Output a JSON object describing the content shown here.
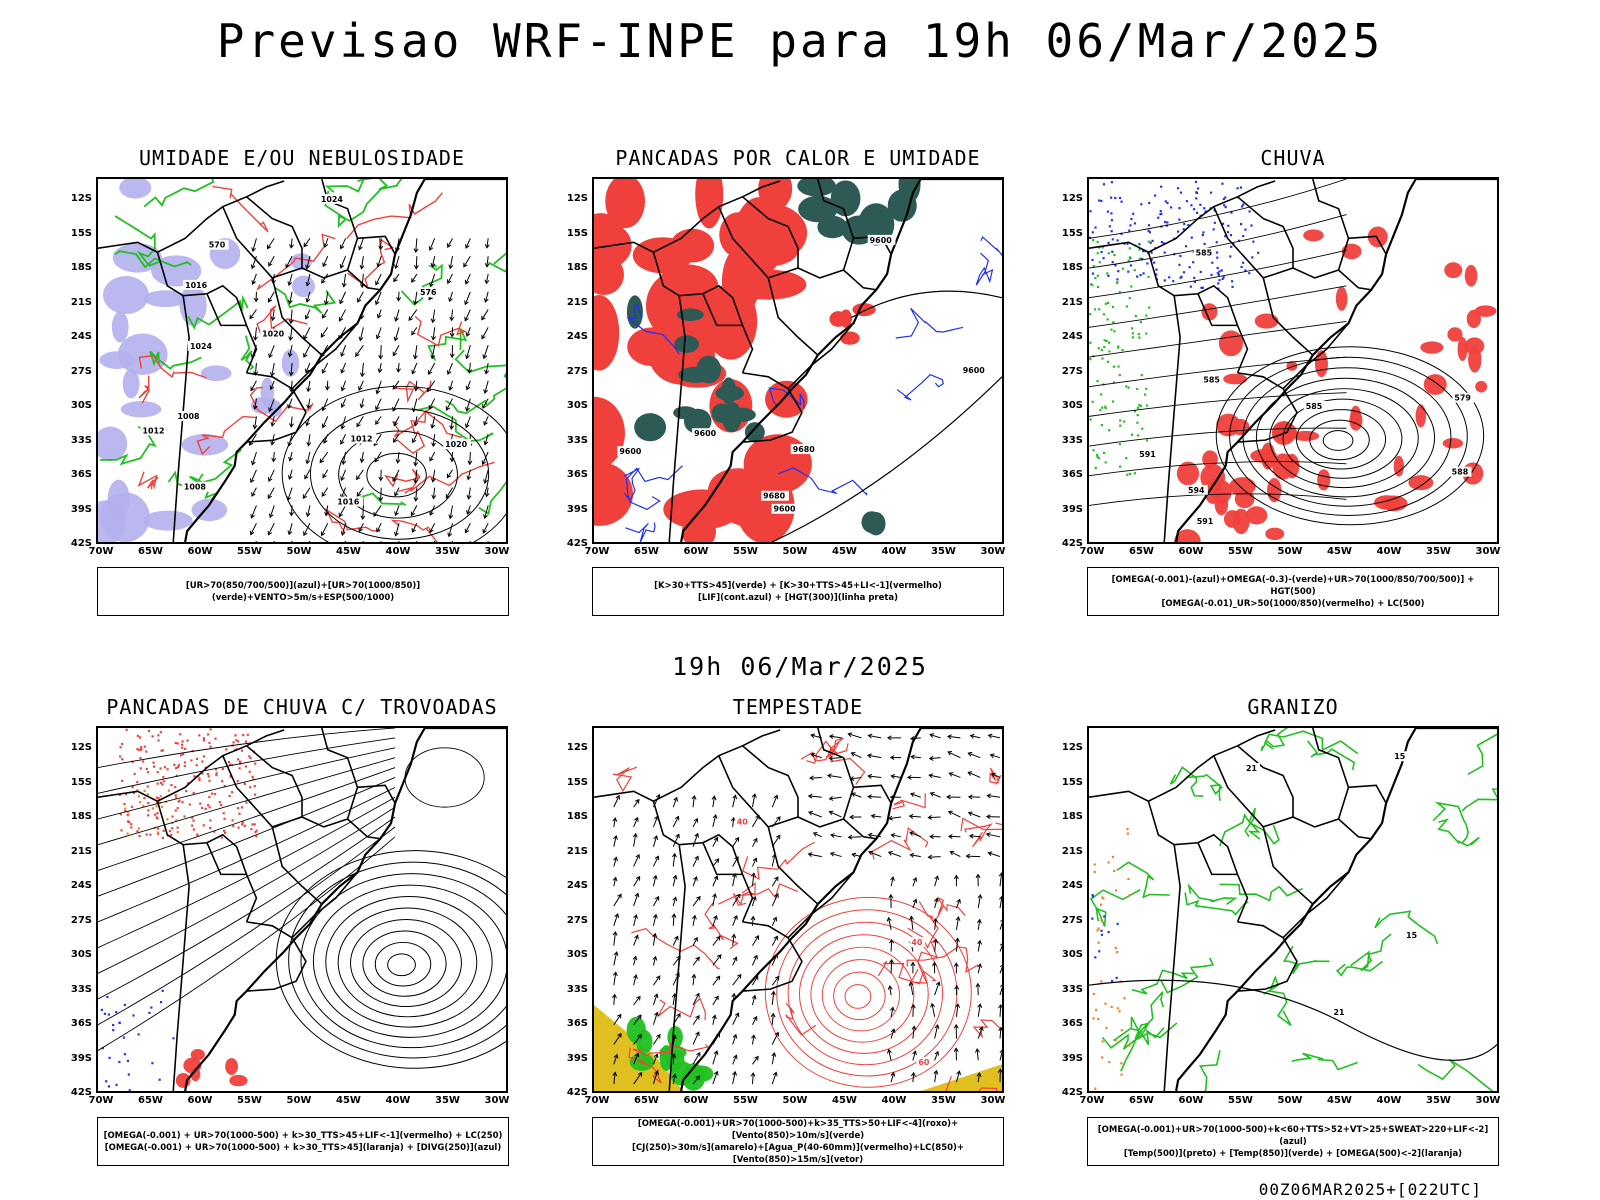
{
  "title": "Previsao WRF-INPE  para 19h 06/Mar/2025",
  "subtitle": "19h 06/Mar/2025",
  "footer": "00Z06MAR2025+[022UTC]",
  "lat_labels": [
    "12S",
    "15S",
    "18S",
    "21S",
    "24S",
    "27S",
    "30S",
    "33S",
    "36S",
    "39S",
    "42S"
  ],
  "lon_labels": [
    "70W",
    "65W",
    "60W",
    "55W",
    "50W",
    "45W",
    "40W",
    "35W",
    "30W"
  ],
  "colors": {
    "red": "#f0403c",
    "green": "#20c020",
    "blue": "#2030f0",
    "lavender": "#b4b0ee",
    "teal": "#2e5a56",
    "yellow": "#e0c020",
    "orange": "#f08020"
  },
  "panels": [
    {
      "title": "UMIDADE E/OU NEBULOSIDADE",
      "legend": [
        "[UR>70(850/700/500)](azul)+[UR>70(1000/850)](verde)+VENTO>5m/s+ESP(500/1000)"
      ],
      "contour_labels": [
        "1008",
        "1012",
        "1012",
        "1016",
        "1016",
        "1020",
        "1020",
        "1024",
        "1024",
        "1008",
        "576",
        "570"
      ]
    },
    {
      "title": "PANCADAS POR CALOR E UMIDADE",
      "legend": [
        "[K>30+TTS>45](verde) + [K>30+TTS>45+LI<-1](vermelho)",
        "[LIF](cont.azul) + [HGT(300)](linha preta)"
      ],
      "contour_labels": [
        "9600",
        "9600",
        "9600",
        "9600",
        "9680",
        "9680",
        "9600"
      ]
    },
    {
      "title": "CHUVA",
      "legend": [
        "[OMEGA(-0.001)-(azul)+OMEGA(-0.3)-(verde)+UR>70(1000/850/700/500)] + HGT(500)",
        "[OMEGA(-0.01)_UR>50(1000/850)(vermelho) + LC(500)"
      ],
      "contour_labels": [
        "585",
        "585",
        "588",
        "591",
        "594",
        "591",
        "585",
        "579"
      ]
    },
    {
      "title": "PANCADAS DE CHUVA C/ TROVOADAS",
      "legend": [
        "[OMEGA(-0.001) + UR>70(1000-500) + k>30_TTS>45+LIF<-1](vermelho) + LC(250)",
        "[OMEGA(-0.001) + UR>70(1000-500) + k>30_TTS>45](laranja) + [DIVG(250)](azul)"
      ],
      "contour_labels": []
    },
    {
      "title": "TEMPESTADE",
      "legend": [
        "[OMEGA(-0.001)+UR>70(1000-500)+k>35_TTS>50+LIF<-4](roxo)+[Vento(850)>10m/s](verde)",
        "[CJ(250)>30m/s](amarelo)+[Agua_P(40-60mm)](vermelho)+LC(850)+[Vento(850)>15m/s](vetor)"
      ],
      "contour_labels": [
        "40",
        "40",
        "60"
      ]
    },
    {
      "title": "GRANIZO",
      "legend": [
        "[OMEGA(-0.001)+UR>70(1000-500)+k<60+TTS>52+VT>25+SWEAT>220+LIF<-2](azul)",
        "[Temp(500)](preto) + [Temp(850)](verde) + [OMEGA(500)<-2](laranja)"
      ],
      "contour_labels": [
        "21",
        "21",
        "15",
        "15"
      ]
    }
  ]
}
